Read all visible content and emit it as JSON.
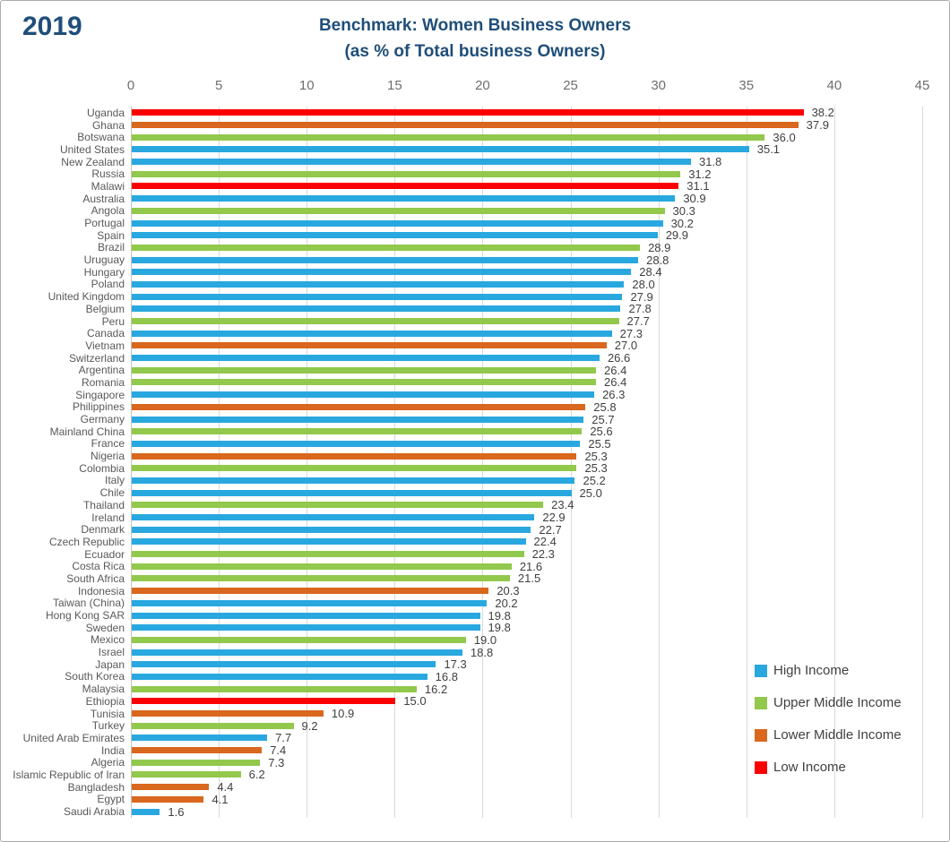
{
  "header": {
    "year_label": "2019",
    "title": "Benchmark: Women Business Owners",
    "subtitle": "(as % of Total business Owners)"
  },
  "colors": {
    "title_text": "#1f4e79",
    "axis_text": "#6e6e6e",
    "country_text": "#595959",
    "value_text": "#3f3f3f",
    "gridline": "#d9d9d9",
    "border": "#ababab"
  },
  "chart_data": {
    "type": "bar",
    "orientation": "horizontal",
    "title": "Benchmark: Women Business Owners",
    "subtitle": "(as % of Total business Owners)",
    "year": "2019",
    "xlim": [
      0,
      45
    ],
    "x_ticks": [
      0,
      5,
      10,
      15,
      20,
      25,
      30,
      35,
      40,
      45
    ],
    "grid": true,
    "value_decimals": 1,
    "legend_position": "bottom-right",
    "legend": [
      {
        "label": "High Income",
        "color": "#29a8e0"
      },
      {
        "label": "Upper Middle Income",
        "color": "#92c84c"
      },
      {
        "label": "Lower Middle Income",
        "color": "#d9671d"
      },
      {
        "label": "Low Income",
        "color": "#fb0000"
      }
    ],
    "bars": [
      {
        "country": "Uganda",
        "value": 38.2,
        "group": "Low Income"
      },
      {
        "country": "Ghana",
        "value": 37.9,
        "group": "Lower Middle Income"
      },
      {
        "country": "Botswana",
        "value": 36.0,
        "group": "Upper Middle Income"
      },
      {
        "country": "United States",
        "value": 35.1,
        "group": "High Income"
      },
      {
        "country": "New Zealand",
        "value": 31.8,
        "group": "High Income"
      },
      {
        "country": "Russia",
        "value": 31.2,
        "group": "Upper Middle Income"
      },
      {
        "country": "Malawi",
        "value": 31.1,
        "group": "Low Income"
      },
      {
        "country": "Australia",
        "value": 30.9,
        "group": "High Income"
      },
      {
        "country": "Angola",
        "value": 30.3,
        "group": "Upper Middle Income"
      },
      {
        "country": "Portugal",
        "value": 30.2,
        "group": "High Income"
      },
      {
        "country": "Spain",
        "value": 29.9,
        "group": "High Income"
      },
      {
        "country": "Brazil",
        "value": 28.9,
        "group": "Upper Middle Income"
      },
      {
        "country": "Uruguay",
        "value": 28.8,
        "group": "High Income"
      },
      {
        "country": "Hungary",
        "value": 28.4,
        "group": "High Income"
      },
      {
        "country": "Poland",
        "value": 28.0,
        "group": "High Income"
      },
      {
        "country": "United Kingdom",
        "value": 27.9,
        "group": "High Income"
      },
      {
        "country": "Belgium",
        "value": 27.8,
        "group": "High Income"
      },
      {
        "country": "Peru",
        "value": 27.7,
        "group": "Upper Middle Income"
      },
      {
        "country": "Canada",
        "value": 27.3,
        "group": "High Income"
      },
      {
        "country": "Vietnam",
        "value": 27.0,
        "group": "Lower Middle Income"
      },
      {
        "country": "Switzerland",
        "value": 26.6,
        "group": "High Income"
      },
      {
        "country": "Argentina",
        "value": 26.4,
        "group": "Upper Middle Income"
      },
      {
        "country": "Romania",
        "value": 26.4,
        "group": "Upper Middle Income"
      },
      {
        "country": "Singapore",
        "value": 26.3,
        "group": "High Income"
      },
      {
        "country": "Philippines",
        "value": 25.8,
        "group": "Lower Middle Income"
      },
      {
        "country": "Germany",
        "value": 25.7,
        "group": "High Income"
      },
      {
        "country": "Mainland China",
        "value": 25.6,
        "group": "Upper Middle Income"
      },
      {
        "country": "France",
        "value": 25.5,
        "group": "High Income"
      },
      {
        "country": "Nigeria",
        "value": 25.3,
        "group": "Lower Middle Income"
      },
      {
        "country": "Colombia",
        "value": 25.3,
        "group": "Upper Middle Income"
      },
      {
        "country": "Italy",
        "value": 25.2,
        "group": "High Income"
      },
      {
        "country": "Chile",
        "value": 25.0,
        "group": "High Income"
      },
      {
        "country": "Thailand",
        "value": 23.4,
        "group": "Upper Middle Income"
      },
      {
        "country": "Ireland",
        "value": 22.9,
        "group": "High Income"
      },
      {
        "country": "Denmark",
        "value": 22.7,
        "group": "High Income"
      },
      {
        "country": "Czech Republic",
        "value": 22.4,
        "group": "High Income"
      },
      {
        "country": "Ecuador",
        "value": 22.3,
        "group": "Upper Middle Income"
      },
      {
        "country": "Costa Rica",
        "value": 21.6,
        "group": "Upper Middle Income"
      },
      {
        "country": "South Africa",
        "value": 21.5,
        "group": "Upper Middle Income"
      },
      {
        "country": "Indonesia",
        "value": 20.3,
        "group": "Lower Middle Income"
      },
      {
        "country": "Taiwan (China)",
        "value": 20.2,
        "group": "High Income"
      },
      {
        "country": "Hong Kong SAR",
        "value": 19.8,
        "group": "High Income"
      },
      {
        "country": "Sweden",
        "value": 19.8,
        "group": "High Income"
      },
      {
        "country": "Mexico",
        "value": 19.0,
        "group": "Upper Middle Income"
      },
      {
        "country": "Israel",
        "value": 18.8,
        "group": "High Income"
      },
      {
        "country": "Japan",
        "value": 17.3,
        "group": "High Income"
      },
      {
        "country": "South Korea",
        "value": 16.8,
        "group": "High Income"
      },
      {
        "country": "Malaysia",
        "value": 16.2,
        "group": "Upper Middle Income"
      },
      {
        "country": "Ethiopia",
        "value": 15.0,
        "group": "Low Income"
      },
      {
        "country": "Tunisia",
        "value": 10.9,
        "group": "Lower Middle Income"
      },
      {
        "country": "Turkey",
        "value": 9.2,
        "group": "Upper Middle Income"
      },
      {
        "country": "United Arab Emirates",
        "value": 7.7,
        "group": "High Income"
      },
      {
        "country": "India",
        "value": 7.4,
        "group": "Lower Middle Income"
      },
      {
        "country": "Algeria",
        "value": 7.3,
        "group": "Upper Middle Income"
      },
      {
        "country": "Islamic Republic of Iran",
        "value": 6.2,
        "group": "Upper Middle Income"
      },
      {
        "country": "Bangladesh",
        "value": 4.4,
        "group": "Lower Middle Income"
      },
      {
        "country": "Egypt",
        "value": 4.1,
        "group": "Lower Middle Income"
      },
      {
        "country": "Saudi Arabia",
        "value": 1.6,
        "group": "High Income"
      }
    ]
  }
}
